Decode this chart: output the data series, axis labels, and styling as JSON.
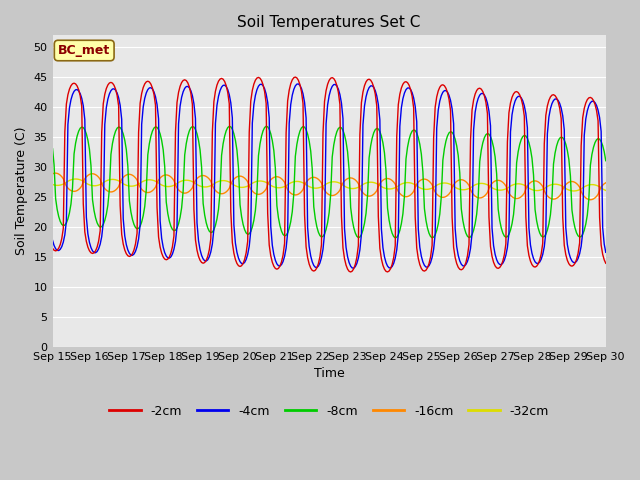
{
  "title": "Soil Temperatures Set C",
  "xlabel": "Time",
  "ylabel": "Soil Temperature (C)",
  "ylim": [
    0,
    52
  ],
  "yticks": [
    0,
    5,
    10,
    15,
    20,
    25,
    30,
    35,
    40,
    45,
    50
  ],
  "n_days": 15,
  "series": {
    "2cm": {
      "color": "#dd0000",
      "label": "-2cm"
    },
    "4cm": {
      "color": "#0000ee",
      "label": "-4cm"
    },
    "8cm": {
      "color": "#00cc00",
      "label": "-8cm"
    },
    "16cm": {
      "color": "#ff8800",
      "label": "-16cm"
    },
    "32cm": {
      "color": "#dddd00",
      "label": "-32cm"
    }
  },
  "annotation_text": "BC_met",
  "plot_bg_color": "#e8e8e8",
  "grid_color": "#ffffff",
  "line_width": 1.0,
  "figsize": [
    6.4,
    4.8
  ],
  "dpi": 100
}
